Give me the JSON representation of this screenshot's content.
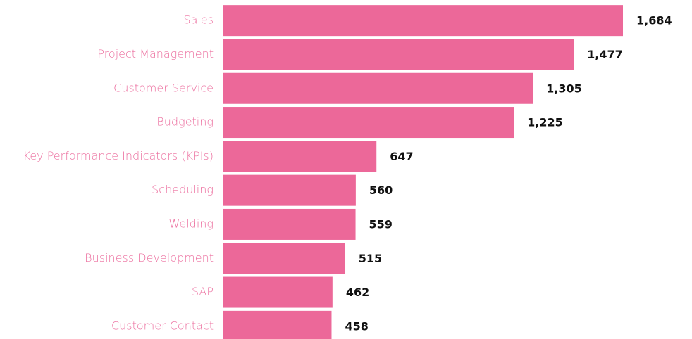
{
  "chart_data": {
    "type": "bar",
    "orientation": "horizontal",
    "categories": [
      "Sales",
      "Project Management",
      "Customer Service",
      "Budgeting",
      "Key Performance Indicators (KPIs)",
      "Scheduling",
      "Welding",
      "Business Development",
      "SAP",
      "Customer Contact"
    ],
    "values": [
      1684,
      1477,
      1305,
      1225,
      647,
      560,
      559,
      515,
      462,
      458
    ],
    "value_labels": [
      "1,684",
      "1,477",
      "1,305",
      "1,225",
      "647",
      "560",
      "559",
      "515",
      "462",
      "458"
    ],
    "color": "#ec6899"
  }
}
